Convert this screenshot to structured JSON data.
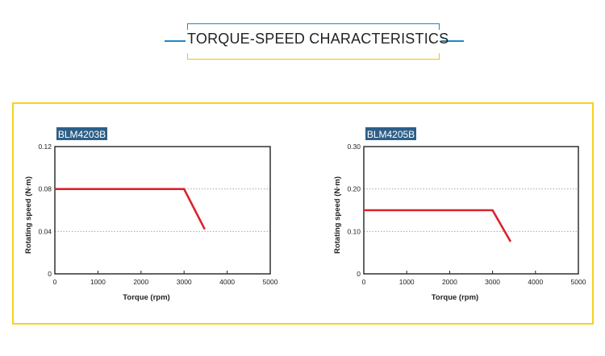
{
  "page": {
    "title": "TORQUE-SPEED CHARACTERISTICS",
    "frame_color": "#f5d31f",
    "accent_blue": "#1e88c9",
    "accent_yellow": "#f2c200"
  },
  "chart_data": [
    {
      "type": "line",
      "title": "BLM4203B",
      "xlabel": "Torque (rpm)",
      "ylabel": "Rotating speed (N·m)",
      "xlim": [
        0,
        5000
      ],
      "ylim": [
        0,
        0.12
      ],
      "xticks": [
        0,
        1000,
        2000,
        3000,
        4000,
        5000
      ],
      "yticks": [
        0,
        0.04,
        0.08,
        0.12
      ],
      "ytick_labels": [
        "0",
        "0.04",
        "0.08",
        "0.12"
      ],
      "grid": "horizontal dotted",
      "series": [
        {
          "name": "BLM4203B",
          "color": "#d9232e",
          "x": [
            0,
            3000,
            3480
          ],
          "y": [
            0.08,
            0.08,
            0.042
          ]
        }
      ]
    },
    {
      "type": "line",
      "title": "BLM4205B",
      "xlabel": "Torque (rpm)",
      "ylabel": "Rotating speed (N·m)",
      "xlim": [
        0,
        5000
      ],
      "ylim": [
        0,
        0.3
      ],
      "xticks": [
        0,
        1000,
        2000,
        3000,
        4000,
        5000
      ],
      "yticks": [
        0,
        0.1,
        0.2,
        0.3
      ],
      "ytick_labels": [
        "0",
        "0.10",
        "0.20",
        "0.30"
      ],
      "grid": "horizontal dotted",
      "series": [
        {
          "name": "BLM4205B",
          "color": "#d9232e",
          "x": [
            0,
            3000,
            3420
          ],
          "y": [
            0.15,
            0.15,
            0.076
          ]
        }
      ]
    }
  ]
}
